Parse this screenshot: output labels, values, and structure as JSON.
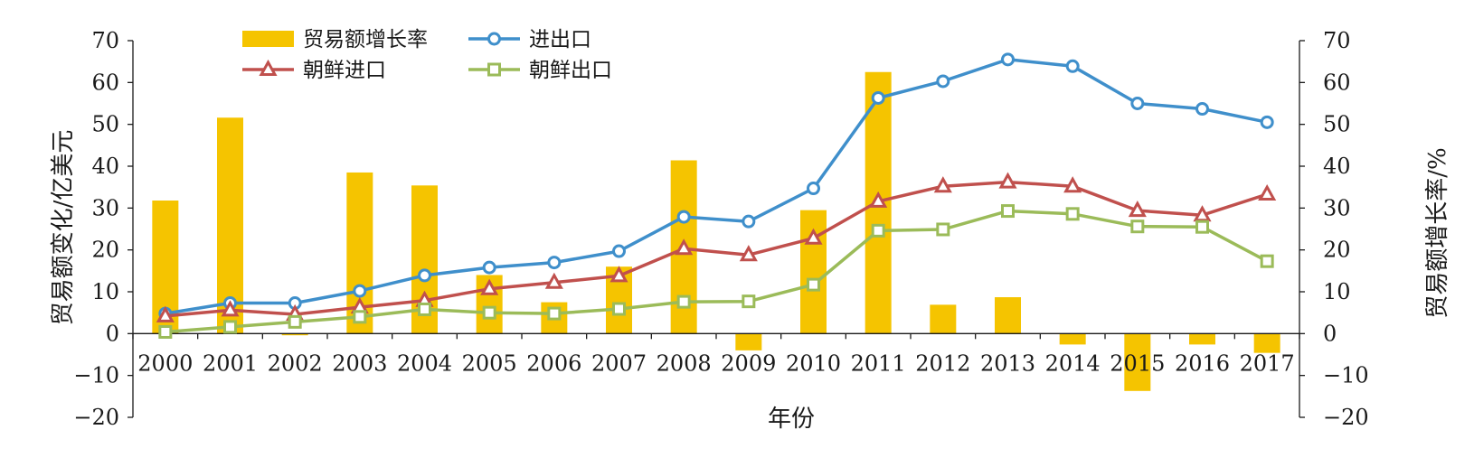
{
  "chart_data": {
    "type": "bar+line",
    "categories": [
      "2000",
      "2001",
      "2002",
      "2003",
      "2004",
      "2005",
      "2006",
      "2007",
      "2008",
      "2009",
      "2010",
      "2011",
      "2012",
      "2013",
      "2014",
      "2015",
      "2016",
      "2017"
    ],
    "bar_series": {
      "name": "贸易额增长率",
      "axis": "right",
      "values": [
        31.8,
        51.6,
        -0.4,
        38.5,
        35.4,
        14.0,
        7.5,
        16.0,
        41.4,
        -4.0,
        29.5,
        62.5,
        6.9,
        8.7,
        -2.6,
        -13.7,
        -2.6,
        -4.6
      ],
      "color": "#F5C400"
    },
    "line_series": [
      {
        "name": "进出口",
        "axis": "left",
        "color": "#3F8FCB",
        "marker": "circle",
        "values": [
          4.8,
          7.3,
          7.3,
          10.2,
          13.9,
          15.8,
          17.0,
          19.7,
          27.9,
          26.8,
          34.7,
          56.3,
          60.3,
          65.5,
          63.9,
          55.0,
          53.7,
          50.5
        ]
      },
      {
        "name": "朝鲜进口",
        "axis": "left",
        "color": "#C0504D",
        "marker": "triangle",
        "values": [
          4.2,
          5.6,
          4.6,
          6.3,
          7.9,
          10.7,
          12.2,
          13.8,
          20.3,
          18.8,
          22.8,
          31.6,
          35.2,
          36.2,
          35.2,
          29.4,
          28.3,
          33.3
        ]
      },
      {
        "name": "朝鲜出口",
        "axis": "left",
        "color": "#9BBB59",
        "marker": "square",
        "values": [
          0.4,
          1.6,
          2.8,
          4.0,
          5.8,
          5.0,
          4.8,
          5.9,
          7.6,
          7.7,
          11.7,
          24.6,
          24.9,
          29.3,
          28.6,
          25.6,
          25.5,
          17.3
        ]
      }
    ],
    "left_axis": {
      "label": "贸易额变化/亿美元",
      "ylim": [
        -20,
        70
      ],
      "ticks": [
        -20,
        -10,
        0,
        10,
        20,
        30,
        40,
        50,
        60,
        70
      ]
    },
    "right_axis": {
      "label": "贸易额增长率/%",
      "ylim": [
        -20,
        70
      ],
      "ticks": [
        -20,
        -10,
        0,
        10,
        20,
        30,
        40,
        50,
        60,
        70
      ]
    },
    "xlabel": "年份",
    "legend_position": "top-left",
    "grid": false
  }
}
